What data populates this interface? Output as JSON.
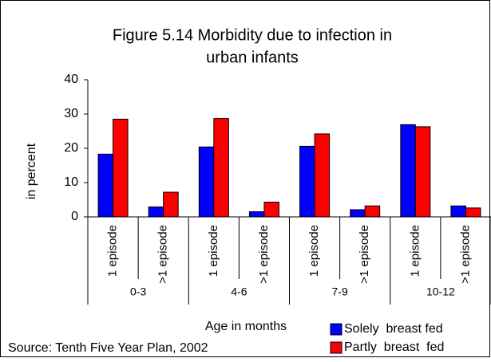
{
  "chart_data": {
    "type": "bar",
    "title": [
      "Figure 5.14 Morbidity due to infection in",
      "urban infants"
    ],
    "y_label": "in percent",
    "x_label": "Age in months",
    "source": "Source: Tenth Five Year Plan, 2002",
    "group_labels": [
      "0-3",
      "4-6",
      "7-9",
      "10-12"
    ],
    "categories": [
      "1 episode",
      ">1 episode",
      "1 episode",
      ">1 episode",
      "1 episode",
      ">1 episode",
      "1 episode",
      ">1 episode"
    ],
    "series": [
      {
        "name": "Solely  breast fed",
        "color": "#0000ff",
        "values": [
          18.3,
          2.9,
          20.4,
          1.5,
          20.6,
          2.1,
          26.9,
          3.2
        ]
      },
      {
        "name": "Partly  breast  fed",
        "color": "#ff0000",
        "values": [
          28.5,
          7.2,
          28.7,
          4.3,
          24.2,
          3.2,
          26.3,
          2.6
        ]
      }
    ],
    "ylim": [
      0,
      40
    ],
    "yticks": [
      0,
      10,
      20,
      30,
      40
    ]
  }
}
